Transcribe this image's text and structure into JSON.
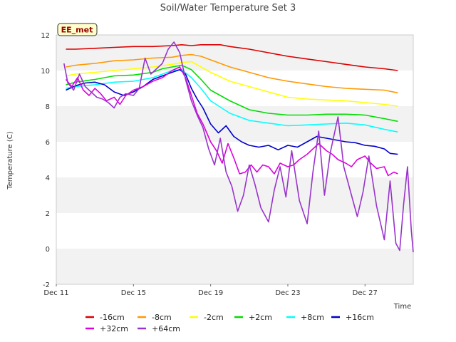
{
  "chart_data": {
    "type": "line",
    "title": "Soil/Water Temperature Set 3",
    "xlabel": "Time",
    "ylabel": "Temperature (C)",
    "badge": "EE_met",
    "x_unit": "day",
    "xlim": [
      11,
      29.5
    ],
    "ylim": [
      -2,
      12
    ],
    "x_ticks": [
      11,
      15,
      19,
      23,
      27
    ],
    "x_tick_labels": [
      "Dec 11",
      "Dec 15",
      "Dec 19",
      "Dec 23",
      "Dec 27"
    ],
    "y_ticks": [
      -2,
      0,
      2,
      4,
      6,
      8,
      10,
      12
    ],
    "grid": "alternating horizontal bands",
    "legend_position": "bottom",
    "series": [
      {
        "name": "-16cm",
        "color": "#dd0000",
        "points": [
          [
            11.5,
            11.2
          ],
          [
            12,
            11.2
          ],
          [
            13,
            11.25
          ],
          [
            14,
            11.3
          ],
          [
            15,
            11.35
          ],
          [
            16,
            11.35
          ],
          [
            17,
            11.4
          ],
          [
            17.5,
            11.45
          ],
          [
            18,
            11.4
          ],
          [
            18.5,
            11.45
          ],
          [
            19,
            11.45
          ],
          [
            19.5,
            11.45
          ],
          [
            20,
            11.35
          ],
          [
            21,
            11.2
          ],
          [
            22,
            11.0
          ],
          [
            23,
            10.8
          ],
          [
            24,
            10.65
          ],
          [
            25,
            10.5
          ],
          [
            26,
            10.35
          ],
          [
            27,
            10.2
          ],
          [
            28,
            10.1
          ],
          [
            28.7,
            10.0
          ]
        ]
      },
      {
        "name": "-8cm",
        "color": "#ff9900",
        "points": [
          [
            11.5,
            10.2
          ],
          [
            12,
            10.3
          ],
          [
            13,
            10.4
          ],
          [
            14,
            10.55
          ],
          [
            15,
            10.6
          ],
          [
            16,
            10.7
          ],
          [
            17,
            10.75
          ],
          [
            17.5,
            10.85
          ],
          [
            18,
            10.9
          ],
          [
            18.5,
            10.8
          ],
          [
            19,
            10.6
          ],
          [
            20,
            10.2
          ],
          [
            21,
            9.9
          ],
          [
            22,
            9.6
          ],
          [
            23,
            9.4
          ],
          [
            24,
            9.25
          ],
          [
            25,
            9.1
          ],
          [
            26,
            9.0
          ],
          [
            27,
            8.95
          ],
          [
            28,
            8.9
          ],
          [
            28.7,
            8.75
          ]
        ]
      },
      {
        "name": "-2cm",
        "color": "#ffff00",
        "points": [
          [
            11.5,
            9.7
          ],
          [
            12,
            9.8
          ],
          [
            13,
            9.9
          ],
          [
            14,
            10.0
          ],
          [
            15,
            10.1
          ],
          [
            16,
            10.2
          ],
          [
            17,
            10.35
          ],
          [
            17.5,
            10.45
          ],
          [
            18,
            10.5
          ],
          [
            18.5,
            10.2
          ],
          [
            19,
            9.9
          ],
          [
            20,
            9.4
          ],
          [
            21,
            9.1
          ],
          [
            22,
            8.8
          ],
          [
            23,
            8.5
          ],
          [
            24,
            8.4
          ],
          [
            25,
            8.35
          ],
          [
            26,
            8.3
          ],
          [
            27,
            8.2
          ],
          [
            28,
            8.1
          ],
          [
            28.7,
            8.0
          ]
        ]
      },
      {
        "name": "+2cm",
        "color": "#00dd00",
        "points": [
          [
            11.5,
            9.2
          ],
          [
            12,
            9.35
          ],
          [
            13,
            9.5
          ],
          [
            14,
            9.7
          ],
          [
            15,
            9.75
          ],
          [
            16,
            9.9
          ],
          [
            16.5,
            10.1
          ],
          [
            17,
            10.2
          ],
          [
            17.5,
            10.3
          ],
          [
            18,
            10.05
          ],
          [
            18.5,
            9.5
          ],
          [
            19,
            8.9
          ],
          [
            20,
            8.3
          ],
          [
            21,
            7.8
          ],
          [
            22,
            7.6
          ],
          [
            23,
            7.5
          ],
          [
            24,
            7.5
          ],
          [
            25,
            7.55
          ],
          [
            26,
            7.55
          ],
          [
            27,
            7.5
          ],
          [
            28,
            7.3
          ],
          [
            28.7,
            7.15
          ]
        ]
      },
      {
        "name": "+8cm",
        "color": "#00ffff",
        "points": [
          [
            11.5,
            9.0
          ],
          [
            12,
            9.1
          ],
          [
            13,
            9.2
          ],
          [
            14,
            9.35
          ],
          [
            15,
            9.4
          ],
          [
            16,
            9.6
          ],
          [
            16.5,
            9.8
          ],
          [
            17,
            10.0
          ],
          [
            17.5,
            10.05
          ],
          [
            18,
            9.6
          ],
          [
            18.5,
            9.0
          ],
          [
            19,
            8.3
          ],
          [
            20,
            7.6
          ],
          [
            21,
            7.2
          ],
          [
            22,
            7.05
          ],
          [
            23,
            6.9
          ],
          [
            24,
            6.95
          ],
          [
            25,
            7.0
          ],
          [
            26,
            7.05
          ],
          [
            27,
            6.95
          ],
          [
            28,
            6.7
          ],
          [
            28.7,
            6.55
          ]
        ]
      },
      {
        "name": "+16cm",
        "color": "#0000cc",
        "points": [
          [
            11.5,
            8.9
          ],
          [
            12,
            9.15
          ],
          [
            12.5,
            9.3
          ],
          [
            13,
            9.35
          ],
          [
            13.5,
            9.2
          ],
          [
            14,
            8.8
          ],
          [
            14.5,
            8.6
          ],
          [
            15,
            8.8
          ],
          [
            15.5,
            9.1
          ],
          [
            16,
            9.5
          ],
          [
            16.5,
            9.7
          ],
          [
            17,
            9.9
          ],
          [
            17.4,
            10.05
          ],
          [
            17.7,
            9.8
          ],
          [
            18,
            9.0
          ],
          [
            18.3,
            8.4
          ],
          [
            18.6,
            7.9
          ],
          [
            19,
            7.0
          ],
          [
            19.4,
            6.5
          ],
          [
            19.8,
            6.9
          ],
          [
            20.2,
            6.3
          ],
          [
            20.6,
            6.0
          ],
          [
            21,
            5.8
          ],
          [
            21.5,
            5.7
          ],
          [
            22,
            5.8
          ],
          [
            22.5,
            5.55
          ],
          [
            23,
            5.8
          ],
          [
            23.5,
            5.7
          ],
          [
            24,
            6.0
          ],
          [
            24.5,
            6.3
          ],
          [
            25,
            6.2
          ],
          [
            25.5,
            6.1
          ],
          [
            26,
            6.0
          ],
          [
            26.5,
            5.95
          ],
          [
            27,
            5.8
          ],
          [
            27.5,
            5.75
          ],
          [
            28,
            5.6
          ],
          [
            28.3,
            5.35
          ],
          [
            28.7,
            5.3
          ]
        ]
      },
      {
        "name": "+32cm",
        "color": "#dd00dd",
        "points": [
          [
            11.5,
            9.5
          ],
          [
            11.8,
            9.1
          ],
          [
            12.1,
            9.6
          ],
          [
            12.4,
            8.9
          ],
          [
            12.7,
            8.6
          ],
          [
            13,
            9.0
          ],
          [
            13.3,
            8.7
          ],
          [
            13.6,
            8.3
          ],
          [
            14,
            8.5
          ],
          [
            14.3,
            8.1
          ],
          [
            14.6,
            8.6
          ],
          [
            15,
            8.9
          ],
          [
            15.5,
            9.1
          ],
          [
            16,
            9.4
          ],
          [
            16.5,
            9.6
          ],
          [
            17,
            10.0
          ],
          [
            17.4,
            10.2
          ],
          [
            17.7,
            9.6
          ],
          [
            18,
            8.6
          ],
          [
            18.3,
            7.6
          ],
          [
            18.6,
            7.0
          ],
          [
            19,
            6.0
          ],
          [
            19.3,
            5.5
          ],
          [
            19.6,
            4.8
          ],
          [
            19.9,
            5.9
          ],
          [
            20.2,
            5.1
          ],
          [
            20.5,
            4.2
          ],
          [
            20.8,
            4.3
          ],
          [
            21.1,
            4.7
          ],
          [
            21.4,
            4.3
          ],
          [
            21.7,
            4.7
          ],
          [
            22,
            4.6
          ],
          [
            22.3,
            4.2
          ],
          [
            22.6,
            4.8
          ],
          [
            23,
            4.6
          ],
          [
            23.3,
            4.7
          ],
          [
            23.6,
            5.0
          ],
          [
            24,
            5.3
          ],
          [
            24.3,
            5.6
          ],
          [
            24.6,
            5.9
          ],
          [
            25,
            5.5
          ],
          [
            25.3,
            5.3
          ],
          [
            25.6,
            5.0
          ],
          [
            26,
            4.8
          ],
          [
            26.3,
            4.6
          ],
          [
            26.6,
            5.0
          ],
          [
            27,
            5.2
          ],
          [
            27.3,
            4.8
          ],
          [
            27.6,
            4.5
          ],
          [
            28,
            4.6
          ],
          [
            28.2,
            4.1
          ],
          [
            28.5,
            4.3
          ],
          [
            28.7,
            4.2
          ]
        ]
      },
      {
        "name": "+64cm",
        "color": "#9933cc",
        "points": [
          [
            11.4,
            10.4
          ],
          [
            11.6,
            9.3
          ],
          [
            11.9,
            8.9
          ],
          [
            12.2,
            9.8
          ],
          [
            12.5,
            9.1
          ],
          [
            12.8,
            8.8
          ],
          [
            13.1,
            8.5
          ],
          [
            13.4,
            8.4
          ],
          [
            13.7,
            8.2
          ],
          [
            14,
            7.9
          ],
          [
            14.3,
            8.5
          ],
          [
            14.6,
            8.7
          ],
          [
            15,
            8.6
          ],
          [
            15.3,
            9.0
          ],
          [
            15.6,
            10.7
          ],
          [
            15.9,
            9.8
          ],
          [
            16.2,
            10.1
          ],
          [
            16.5,
            10.4
          ],
          [
            16.8,
            11.2
          ],
          [
            17.1,
            11.6
          ],
          [
            17.4,
            11.0
          ],
          [
            17.7,
            9.5
          ],
          [
            18,
            8.3
          ],
          [
            18.3,
            7.5
          ],
          [
            18.6,
            6.8
          ],
          [
            18.9,
            5.6
          ],
          [
            19.2,
            4.7
          ],
          [
            19.5,
            6.2
          ],
          [
            19.8,
            4.3
          ],
          [
            20.1,
            3.5
          ],
          [
            20.4,
            2.1
          ],
          [
            20.7,
            3.0
          ],
          [
            21.0,
            4.7
          ],
          [
            21.3,
            3.6
          ],
          [
            21.6,
            2.3
          ],
          [
            22,
            1.5
          ],
          [
            22.3,
            3.3
          ],
          [
            22.6,
            4.6
          ],
          [
            22.9,
            2.9
          ],
          [
            23.2,
            5.5
          ],
          [
            23.6,
            2.7
          ],
          [
            24,
            1.4
          ],
          [
            24.3,
            4.3
          ],
          [
            24.6,
            6.6
          ],
          [
            24.9,
            3.0
          ],
          [
            25.2,
            5.4
          ],
          [
            25.6,
            7.4
          ],
          [
            25.9,
            4.6
          ],
          [
            26.3,
            3.0
          ],
          [
            26.6,
            1.8
          ],
          [
            26.9,
            3.2
          ],
          [
            27.2,
            5.2
          ],
          [
            27.6,
            2.4
          ],
          [
            28,
            0.5
          ],
          [
            28.3,
            3.8
          ],
          [
            28.6,
            0.3
          ],
          [
            28.8,
            -0.1
          ],
          [
            29.0,
            2.5
          ],
          [
            29.2,
            4.6
          ],
          [
            29.4,
            1.0
          ],
          [
            29.5,
            -0.2
          ]
        ]
      }
    ]
  }
}
